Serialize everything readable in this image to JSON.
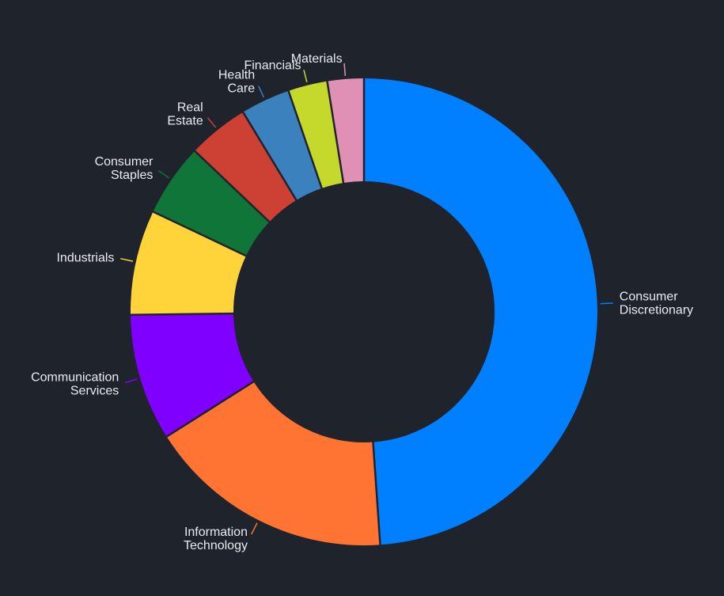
{
  "chart_data": {
    "type": "pie",
    "subtype": "donut",
    "title": "",
    "background": "#1f232c",
    "slices": [
      {
        "label": "Consumer Discretionary",
        "value": 48.5,
        "color": "#0080ff"
      },
      {
        "label": "Information Technology",
        "value": 17.0,
        "color": "#ff7433"
      },
      {
        "label": "Communication Services",
        "value": 8.7,
        "color": "#7f00ff"
      },
      {
        "label": "Industrials",
        "value": 7.2,
        "color": "#ffd43b"
      },
      {
        "label": "Consumer Staples",
        "value": 5.0,
        "color": "#0f7538"
      },
      {
        "label": "Real Estate",
        "value": 4.2,
        "color": "#cd4034"
      },
      {
        "label": "Health Care",
        "value": 3.4,
        "color": "#3a81be"
      },
      {
        "label": "Financials",
        "value": 2.7,
        "color": "#c5d92d"
      },
      {
        "label": "Materials",
        "value": 2.5,
        "color": "#e090b4"
      }
    ]
  }
}
